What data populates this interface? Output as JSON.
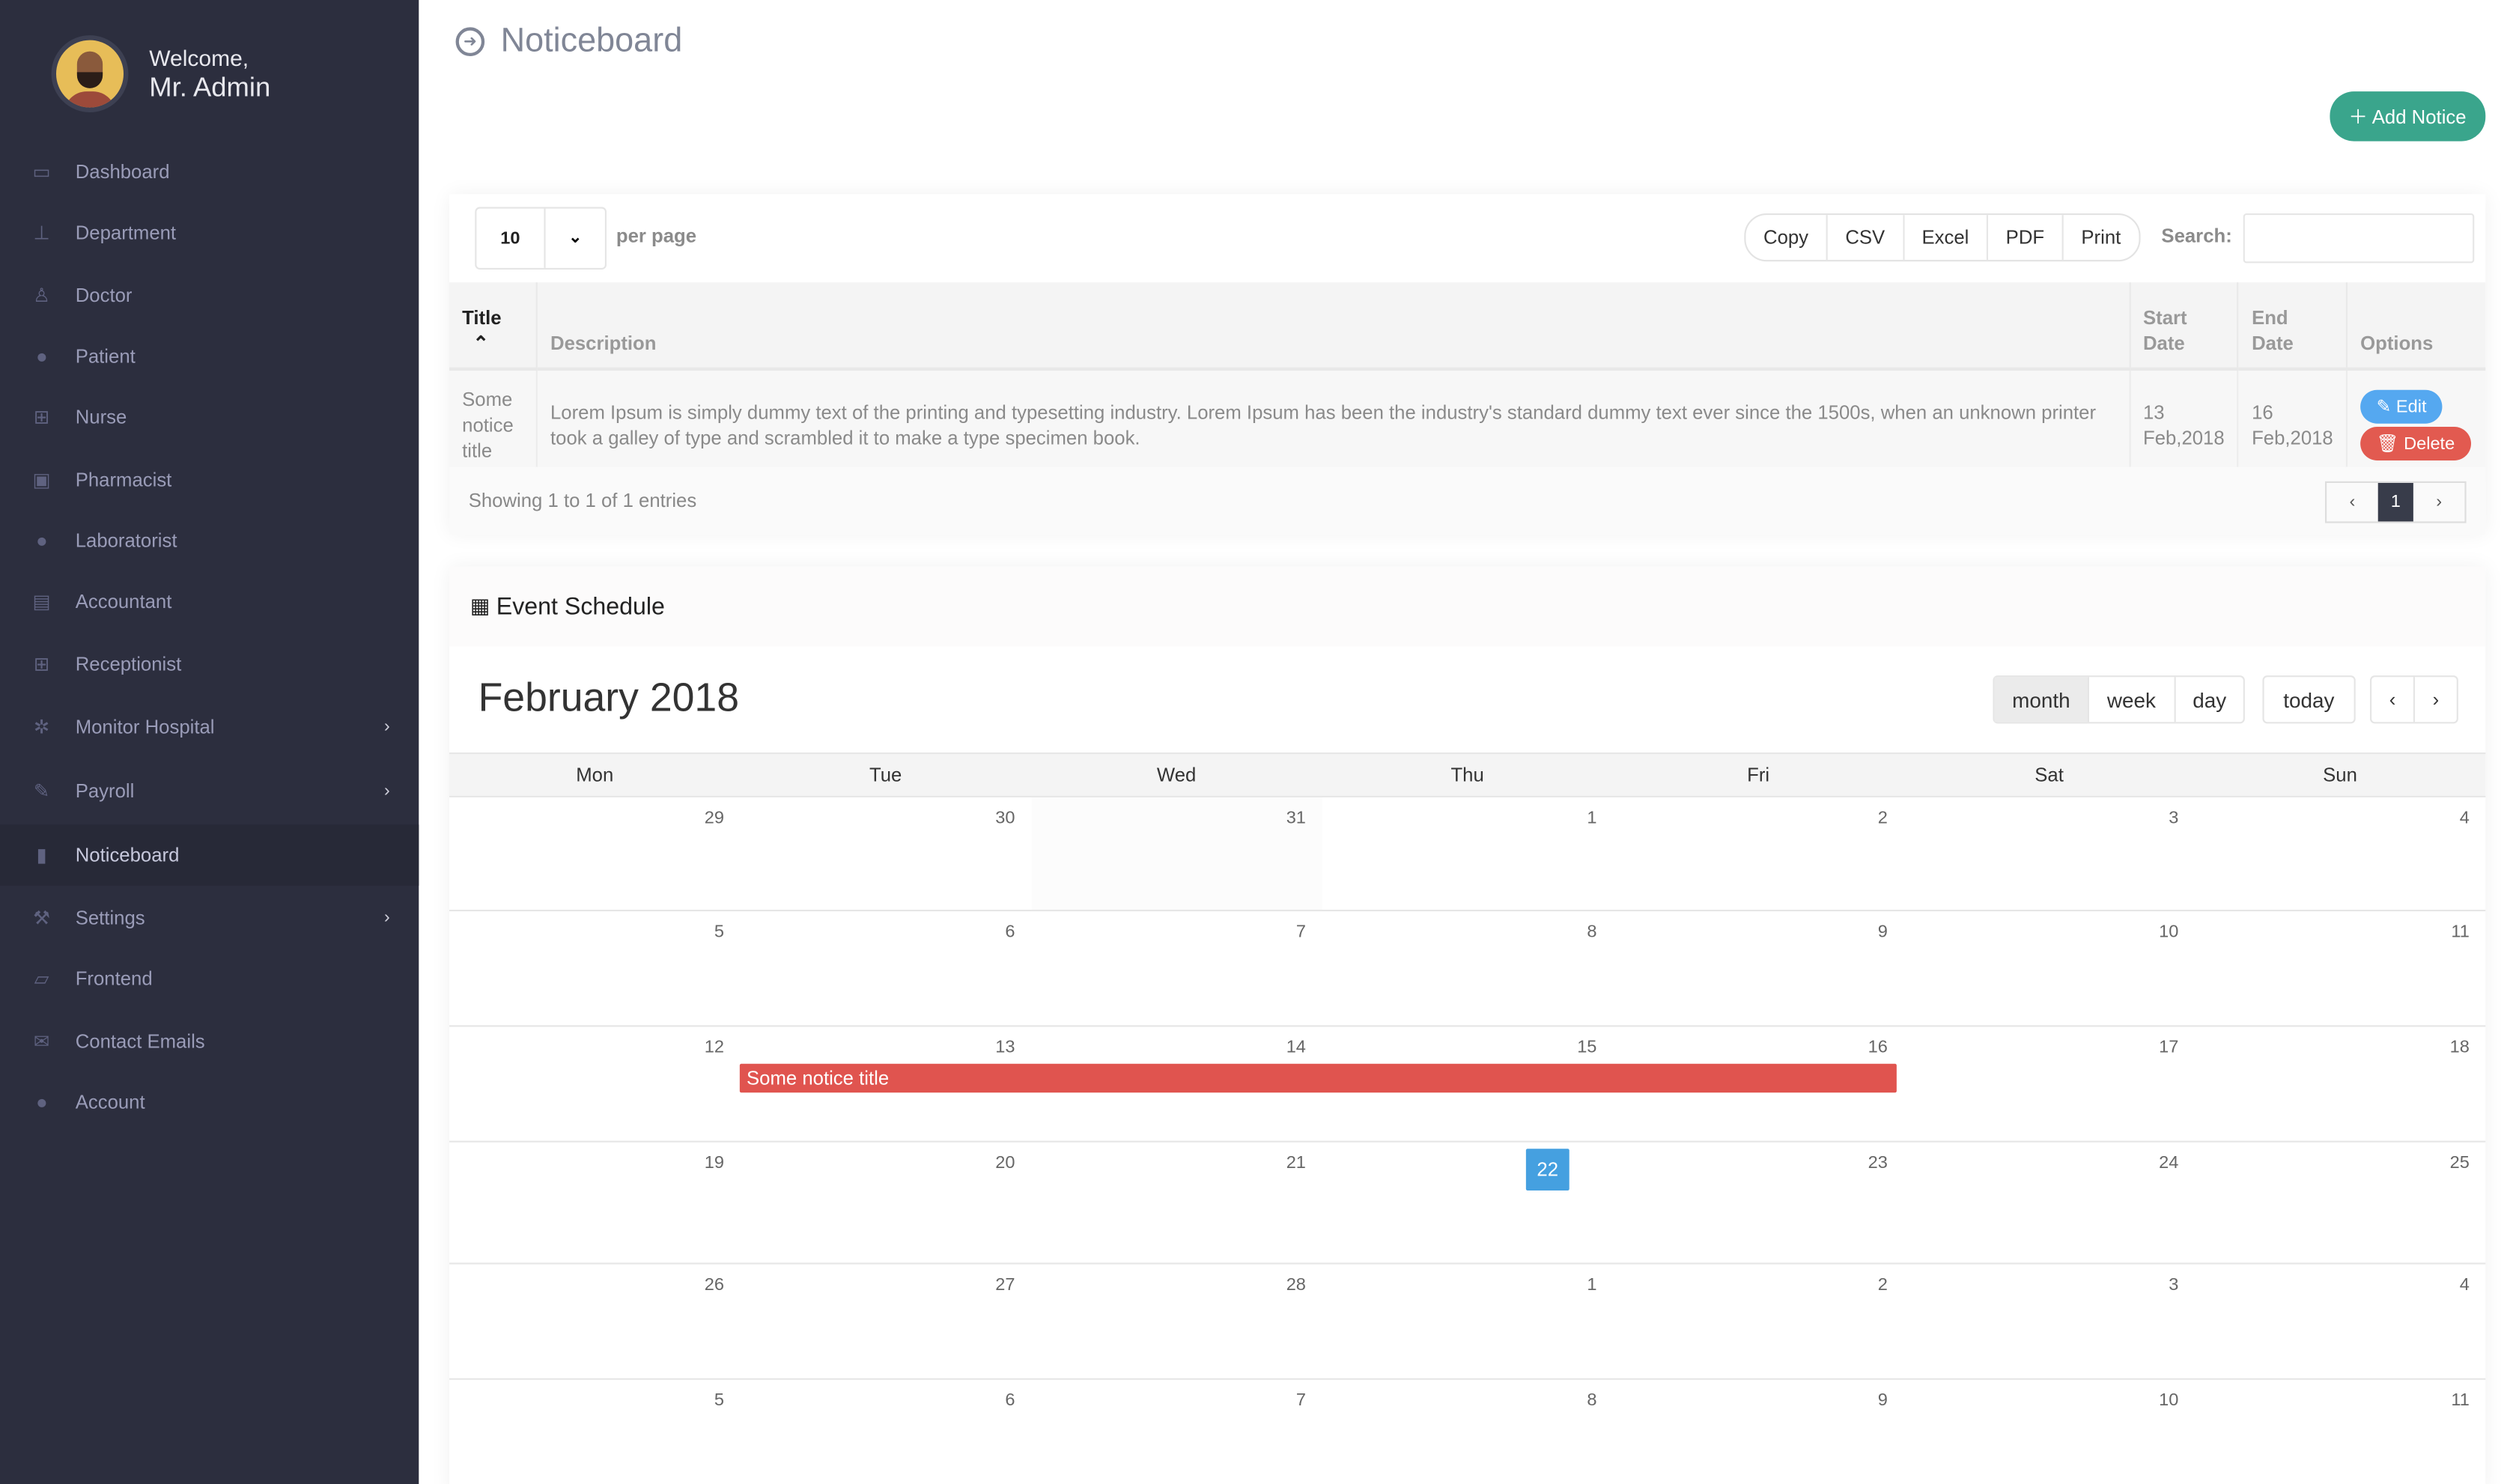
{
  "sidebar": {
    "welcome": "Welcome,",
    "user": "Mr. Admin",
    "items": [
      {
        "label": "Dashboard",
        "icon": "monitor-icon"
      },
      {
        "label": "Department",
        "icon": "sitemap-icon"
      },
      {
        "label": "Doctor",
        "icon": "user-md-icon"
      },
      {
        "label": "Patient",
        "icon": "user-icon"
      },
      {
        "label": "Nurse",
        "icon": "plus-square-icon"
      },
      {
        "label": "Pharmacist",
        "icon": "medkit-icon"
      },
      {
        "label": "Laboratorist",
        "icon": "user-icon"
      },
      {
        "label": "Accountant",
        "icon": "money-icon"
      },
      {
        "label": "Receptionist",
        "icon": "plus-square-icon"
      },
      {
        "label": "Monitor Hospital",
        "icon": "gear-icon",
        "submenu": true
      },
      {
        "label": "Payroll",
        "icon": "pencil-icon",
        "submenu": true
      },
      {
        "label": "Noticeboard",
        "icon": "clipboard-icon",
        "active": true
      },
      {
        "label": "Settings",
        "icon": "wrench-icon",
        "submenu": true
      },
      {
        "label": "Frontend",
        "icon": "laptop-icon"
      },
      {
        "label": "Contact Emails",
        "icon": "envelope-icon"
      },
      {
        "label": "Account",
        "icon": "user-icon"
      }
    ]
  },
  "header": {
    "title": "Noticeboard",
    "add_label": "Add Notice",
    "accent": "#3aa58c"
  },
  "table": {
    "per_page": "10",
    "per_page_label": "per page",
    "exports": [
      "Copy",
      "CSV",
      "Excel",
      "PDF",
      "Print"
    ],
    "search_label": "Search:",
    "search_value": "",
    "columns": [
      "Title",
      "Description",
      "Start Date",
      "End Date",
      "Options"
    ],
    "rows": [
      {
        "title": "Some notice title",
        "description": "Lorem Ipsum is simply dummy text of the printing and typesetting industry. Lorem Ipsum has been the industry's standard dummy text ever since the 1500s, when an unknown printer took a galley of type and scrambled it to make a type specimen book.",
        "start": "13 Feb,2018",
        "end": "16 Feb,2018",
        "edit": "Edit",
        "delete": "Delete"
      }
    ],
    "info": "Showing 1 to 1 of 1 entries",
    "pager": {
      "prev": "‹",
      "current": "1",
      "next": "›"
    }
  },
  "calendar": {
    "heading": "Event Schedule",
    "month": "February 2018",
    "views": [
      "month",
      "week",
      "day"
    ],
    "active_view": "month",
    "today_label": "today",
    "prev": "‹",
    "next": "›",
    "weekdays": [
      "Mon",
      "Tue",
      "Wed",
      "Thu",
      "Fri",
      "Sat",
      "Sun"
    ],
    "weeks": [
      [
        "29",
        "30",
        "31",
        "1",
        "2",
        "3",
        "4"
      ],
      [
        "5",
        "6",
        "7",
        "8",
        "9",
        "10",
        "11"
      ],
      [
        "12",
        "13",
        "14",
        "15",
        "16",
        "17",
        "18"
      ],
      [
        "19",
        "20",
        "21",
        "22",
        "23",
        "24",
        "25"
      ],
      [
        "26",
        "27",
        "28",
        "1",
        "2",
        "3",
        "4"
      ],
      [
        "5",
        "6",
        "7",
        "8",
        "9",
        "10",
        "11"
      ]
    ],
    "today": "22",
    "event": {
      "title": "Some notice title",
      "start": "13",
      "end": "16",
      "color": "#e0544f"
    }
  }
}
